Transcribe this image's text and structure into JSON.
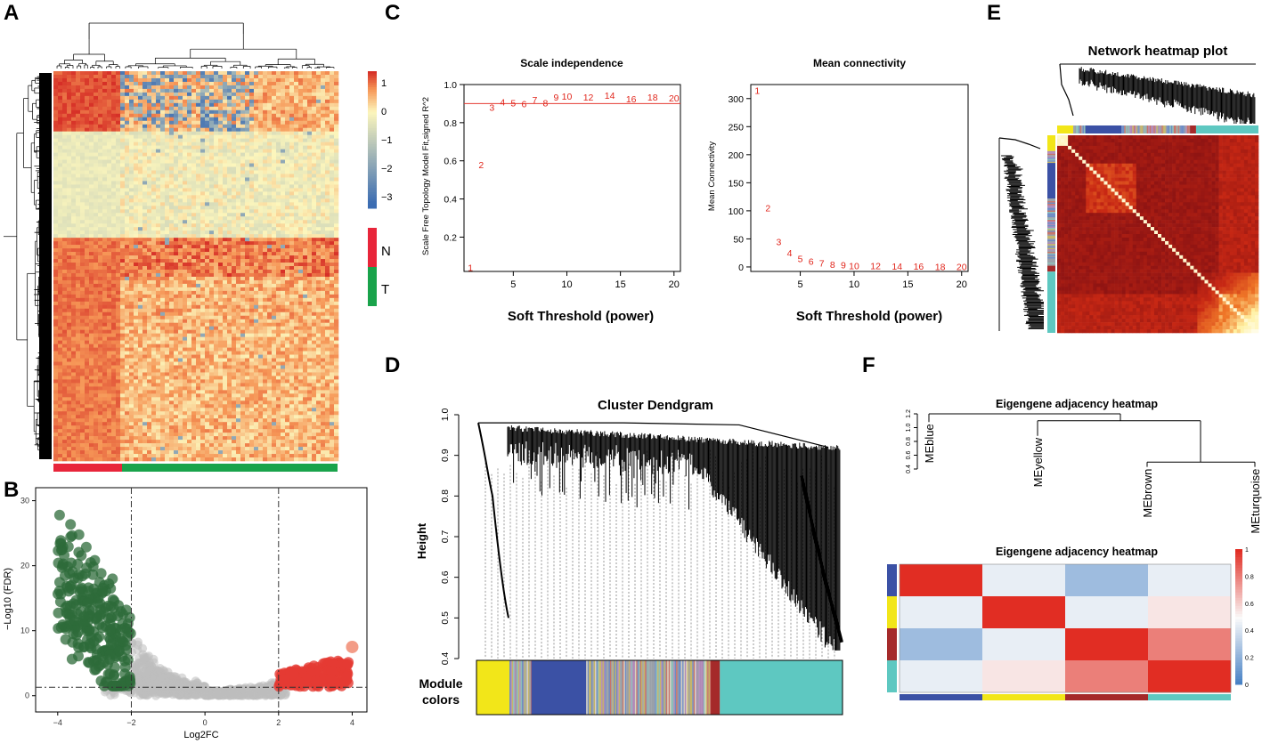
{
  "panels": {
    "A": "A",
    "B": "B",
    "C": "C",
    "D": "D",
    "E": "E",
    "F": "F"
  },
  "chart_data": [
    {
      "panel": "A",
      "type": "heatmap",
      "title": "",
      "colorbar": {
        "ticks": [
          "1",
          "0",
          "−1",
          "−2",
          "−3"
        ],
        "values": [
          1,
          0,
          -1,
          -2,
          -3
        ],
        "range": [
          -3.4,
          1.4
        ]
      },
      "group_legend": [
        {
          "label": "N",
          "color": "#e8253a"
        },
        {
          "label": "T",
          "color": "#19a34b"
        }
      ],
      "groups": {
        "N_columns": 13,
        "T_columns": 50
      }
    },
    {
      "panel": "B",
      "type": "scatter",
      "xlabel": "Log2FC",
      "ylabel": "−Log10 (FDR)",
      "xlim": [
        -4.6,
        4.4
      ],
      "ylim": [
        -2.5,
        32
      ],
      "x_ticks": [
        "−4",
        "−2",
        "0",
        "2",
        "4"
      ],
      "y_ticks": [
        "0",
        "10",
        "20",
        "30"
      ],
      "cutoffs": {
        "log2fc": [
          -2,
          2
        ],
        "neg_log10_fdr": 1.3
      },
      "colors": {
        "down": "#2e6b3a",
        "ns": "#bdbdbd",
        "up": "#e53b33"
      }
    },
    {
      "panel": "C",
      "type": "scatter",
      "title": "Scale independence",
      "xlabel": "Soft Threshold (power)",
      "ylabel": "Scale Free Topology Model Fit,signed R^2",
      "xlim": [
        0.4,
        20.6
      ],
      "ylim": [
        0.02,
        1.0
      ],
      "x_ticks": [
        "5",
        "10",
        "15",
        "20"
      ],
      "y_ticks": [
        "0.2",
        "0.4",
        "0.6",
        "0.8",
        "1.0"
      ],
      "hline": 0.9,
      "x": [
        1,
        2,
        3,
        4,
        5,
        6,
        7,
        8,
        9,
        10,
        12,
        14,
        16,
        18,
        20
      ],
      "y": [
        0.04,
        0.58,
        0.88,
        0.91,
        0.905,
        0.9,
        0.92,
        0.905,
        0.935,
        0.94,
        0.935,
        0.945,
        0.925,
        0.935,
        0.93
      ],
      "labels": [
        "1",
        "2",
        "3",
        "4",
        "5",
        "6",
        "7",
        "8",
        "9",
        "10",
        "12",
        "14",
        "16",
        "18",
        "20"
      ]
    },
    {
      "panel": "C",
      "type": "scatter",
      "title": "Mean connectivity",
      "xlabel": "Soft Threshold (power)",
      "ylabel": "Mean Connectivity",
      "xlim": [
        0.4,
        20.6
      ],
      "ylim": [
        -8,
        325
      ],
      "x_ticks": [
        "5",
        "10",
        "15",
        "20"
      ],
      "y_ticks": [
        "0",
        "50",
        "100",
        "150",
        "200",
        "250",
        "300"
      ],
      "x": [
        1,
        2,
        3,
        4,
        5,
        6,
        7,
        8,
        9,
        10,
        12,
        14,
        16,
        18,
        20
      ],
      "y": [
        315,
        105,
        45,
        25,
        15,
        10,
        7,
        5,
        3.5,
        2.5,
        2,
        1.5,
        1.2,
        1,
        0.8
      ],
      "labels": [
        "1",
        "2",
        "3",
        "4",
        "5",
        "6",
        "7",
        "8",
        "9",
        "10",
        "12",
        "14",
        "16",
        "18",
        "20"
      ]
    },
    {
      "panel": "D",
      "type": "dendrogram",
      "title": "Cluster Dendgram",
      "ylabel": "Height",
      "ylim": [
        0.4,
        1.0
      ],
      "y_ticks": [
        "0.4",
        "0.5",
        "0.6",
        "0.7",
        "0.8",
        "0.9",
        "1.0"
      ],
      "module_label_line1": "Module",
      "module_label_line2": "colors",
      "modules": [
        "yellow",
        "grey",
        "blue",
        "grey",
        "brown",
        "turquoise"
      ],
      "module_colors": {
        "yellow": "#f2e619",
        "blue": "#3b51a5",
        "brown": "#a52a2a",
        "turquoise": "#5ec8c1",
        "grey": "#9aa0a8"
      }
    },
    {
      "panel": "E",
      "type": "heatmap",
      "title": "Network heatmap plot"
    },
    {
      "panel": "F",
      "type": "dendrogram",
      "title": "Eigengene adjacency heatmap",
      "y_ticks": [
        "0.4",
        "0.6",
        "0.8",
        "1.0",
        "1.2"
      ],
      "leaves": [
        "MEblue",
        "MEyellow",
        "MEbrown",
        "MEturquoise"
      ]
    },
    {
      "panel": "F",
      "type": "heatmap",
      "title": "Eigengene adjacency heatmap",
      "rows": [
        "blue",
        "yellow",
        "brown",
        "turquoise"
      ],
      "row_colors": [
        "#3b51a5",
        "#f2e619",
        "#a52a2a",
        "#5ec8c1"
      ],
      "matrix": [
        [
          1.0,
          0.45,
          0.25,
          0.45
        ],
        [
          0.45,
          1.0,
          0.45,
          0.55
        ],
        [
          0.25,
          0.45,
          1.0,
          0.8
        ],
        [
          0.45,
          0.55,
          0.8,
          1.0
        ]
      ],
      "colorbar": {
        "ticks": [
          "1",
          "0.8",
          "0.6",
          "0.4",
          "0.2",
          "0"
        ],
        "range": [
          0,
          1
        ]
      }
    }
  ]
}
